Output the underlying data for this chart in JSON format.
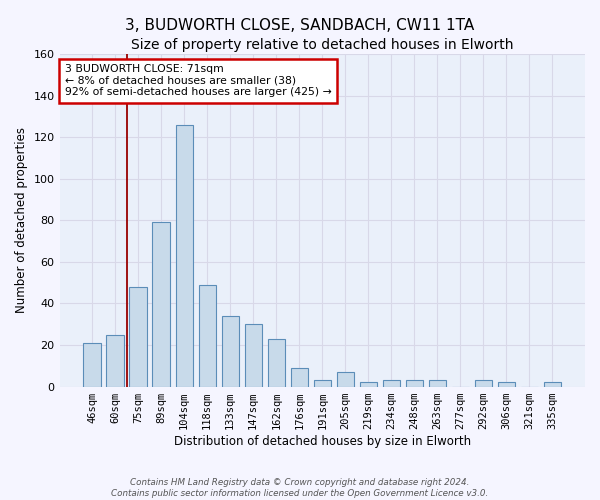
{
  "title1": "3, BUDWORTH CLOSE, SANDBACH, CW11 1TA",
  "title2": "Size of property relative to detached houses in Elworth",
  "xlabel": "Distribution of detached houses by size in Elworth",
  "ylabel": "Number of detached properties",
  "categories": [
    "46sqm",
    "60sqm",
    "75sqm",
    "89sqm",
    "104sqm",
    "118sqm",
    "133sqm",
    "147sqm",
    "162sqm",
    "176sqm",
    "191sqm",
    "205sqm",
    "219sqm",
    "234sqm",
    "248sqm",
    "263sqm",
    "277sqm",
    "292sqm",
    "306sqm",
    "321sqm",
    "335sqm"
  ],
  "values": [
    21,
    25,
    48,
    79,
    126,
    49,
    34,
    30,
    23,
    9,
    3,
    7,
    2,
    3,
    3,
    3,
    0,
    3,
    2,
    0,
    2
  ],
  "bar_color": "#c8daea",
  "bar_edge_color": "#5b8db8",
  "ylim_max": 160,
  "yticks": [
    0,
    20,
    40,
    60,
    80,
    100,
    120,
    140,
    160
  ],
  "red_line_x": 1.5,
  "annotation_title": "3 BUDWORTH CLOSE: 71sqm",
  "annotation_line1": "← 8% of detached houses are smaller (38)",
  "annotation_line2": "92% of semi-detached houses are larger (425) →",
  "footnote1": "Contains HM Land Registry data © Crown copyright and database right 2024.",
  "footnote2": "Contains public sector information licensed under the Open Government Licence v3.0.",
  "ax_bg_color": "#eaf0fa",
  "fig_bg_color": "#f5f5ff",
  "grid_color": "#d8d8e8",
  "bar_width": 0.75,
  "title1_fontsize": 11,
  "title2_fontsize": 10,
  "tick_fontsize": 7.5,
  "ylabel_fontsize": 8.5,
  "xlabel_fontsize": 8.5,
  "annot_fontsize": 7.8,
  "footnote_fontsize": 6.3
}
